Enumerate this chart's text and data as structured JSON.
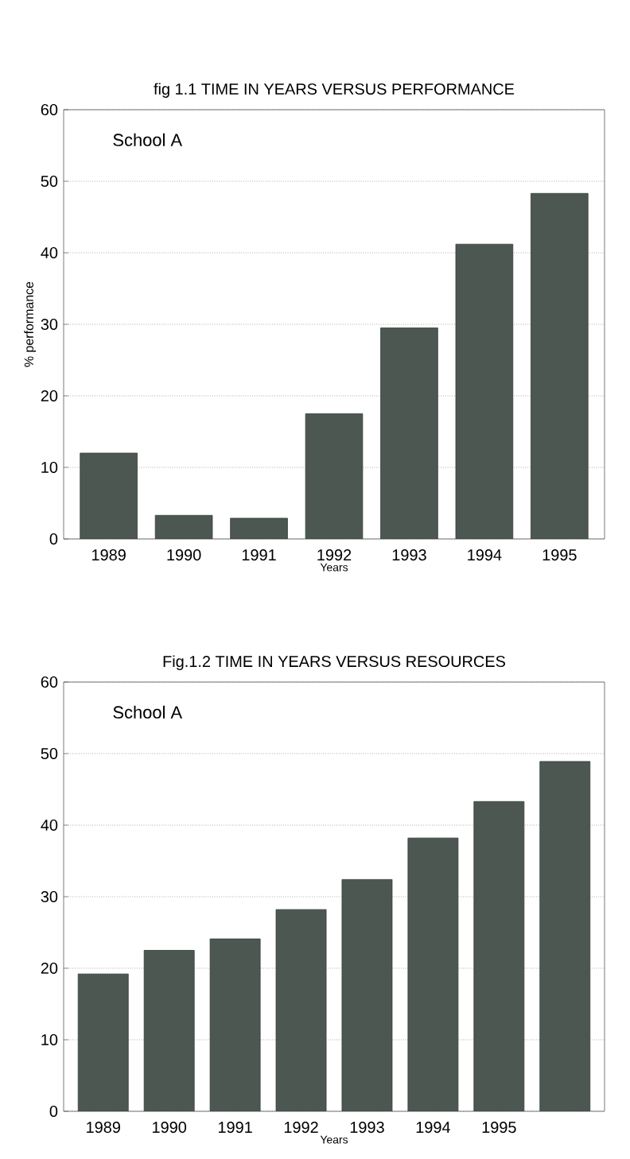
{
  "chart_data": [
    {
      "type": "bar",
      "title": "fig 1.1    TIME IN YEARS VERSUS PERFORMANCE",
      "xlabel": "Years",
      "ylabel": "% performance",
      "annotations": [
        "School A"
      ],
      "categories": [
        "1989",
        "1990",
        "1991",
        "1992",
        "1993",
        "1994",
        "1995"
      ],
      "values": [
        12,
        3.3,
        2.9,
        17.5,
        29.5,
        41.2,
        48.3
      ],
      "color": "#4d5752",
      "ylim": [
        0,
        60
      ],
      "yticks": [
        0,
        10,
        20,
        30,
        40,
        50,
        60
      ],
      "grid": "y"
    },
    {
      "type": "bar",
      "title": "Fig.1.2 TIME IN YEARS VERSUS RESOURCES",
      "xlabel": "Years",
      "annotations": [
        "School A"
      ],
      "categories": [
        "1989",
        "1990",
        "1991",
        "1992",
        "1993",
        "1994",
        "1995",
        null
      ],
      "values": [
        19.2,
        22.5,
        24.1,
        28.2,
        32.4,
        38.2,
        43.3,
        48.9
      ],
      "color": "#4d5752",
      "ylim": [
        0,
        60
      ],
      "yticks": [
        0,
        10,
        20,
        30,
        40,
        50,
        60
      ],
      "grid": "y"
    }
  ]
}
